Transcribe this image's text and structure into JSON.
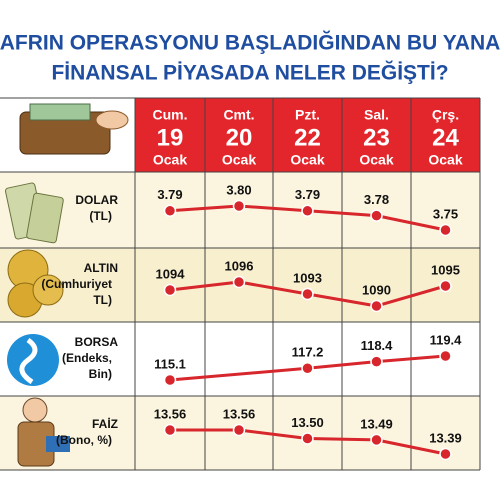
{
  "chart_data": {
    "type": "line",
    "title": [
      "AFRIN OPERASYONU BAŞLADIĞINDAN BU YANA",
      "FİNANSAL PİYASADA NELER DEĞİŞTİ?"
    ],
    "color": "#d7262c",
    "columns": [
      {
        "day": "Cum.",
        "date": "19",
        "month": "Ocak"
      },
      {
        "day": "Cmt.",
        "date": "20",
        "month": "Ocak"
      },
      {
        "day": "Pzt.",
        "date": "22",
        "month": "Ocak"
      },
      {
        "day": "Sal.",
        "date": "23",
        "month": "Ocak"
      },
      {
        "day": "Çrş.",
        "date": "24",
        "month": "Ocak"
      }
    ],
    "rows": [
      {
        "label": [
          "DOLAR",
          "(TL)"
        ],
        "values": [
          3.79,
          3.8,
          3.79,
          3.78,
          3.75
        ],
        "value_labels": [
          "3.79",
          "3.80",
          "3.79",
          "3.78",
          "3.75"
        ]
      },
      {
        "label": [
          "ALTIN",
          "(Cumhuriyet",
          "TL)"
        ],
        "values": [
          1094,
          1096,
          1093,
          1090,
          1095
        ]
      },
      {
        "label": [
          "BORSA",
          "(Endeks,",
          "Bin)"
        ],
        "values": [
          115.1,
          null,
          117.2,
          118.4,
          119.4
        ]
      },
      {
        "label": [
          "FAİZ",
          "(Bono, %)"
        ],
        "values": [
          13.56,
          13.56,
          13.5,
          13.49,
          13.39
        ],
        "value_labels": [
          "13.56",
          "13.56",
          "13.50",
          "13.49",
          "13.39"
        ]
      }
    ]
  }
}
